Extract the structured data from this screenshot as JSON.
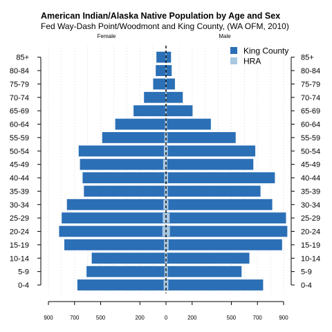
{
  "chart_data": {
    "type": "bar",
    "orientation": "horizontal-population-pyramid",
    "title": "American Indian/Alaska Native Population by Age and Sex",
    "subtitle": "Fed Way-Dash Point/Woodmont and King County, (WA OFM, 2010)",
    "left_label": "Female",
    "right_label": "Male",
    "categories": [
      "0-4",
      "5-9",
      "10-14",
      "15-19",
      "20-24",
      "25-29",
      "30-34",
      "35-39",
      "40-44",
      "45-49",
      "50-54",
      "55-59",
      "60-64",
      "65-69",
      "70-74",
      "75-79",
      "80-84",
      "85+"
    ],
    "x_ticks": [
      {
        "label": "900",
        "value": -900
      },
      {
        "label": "700",
        "value": -700
      },
      {
        "label": "500",
        "value": -500
      },
      {
        "label": "200",
        "value": -200
      },
      {
        "label": "0",
        "value": 0
      },
      {
        "label": "200",
        "value": 200
      },
      {
        "label": "500",
        "value": 500
      },
      {
        "label": "700",
        "value": 700
      },
      {
        "label": "900",
        "value": 900
      }
    ],
    "xlim": [
      -900,
      900
    ],
    "grid": true,
    "legend_position": "top-right",
    "series": [
      {
        "name": "King County",
        "color": "#2b6fb6",
        "female": [
          680,
          610,
          570,
          780,
          820,
          800,
          760,
          630,
          640,
          660,
          670,
          490,
          390,
          250,
          170,
          100,
          80,
          75
        ],
        "male": [
          745,
          580,
          640,
          890,
          930,
          920,
          815,
          725,
          835,
          670,
          685,
          535,
          345,
          205,
          130,
          70,
          45,
          40
        ]
      },
      {
        "name": "HRA",
        "color": "#a9c8e2",
        "female": [
          18,
          12,
          10,
          15,
          28,
          25,
          20,
          12,
          14,
          22,
          16,
          12,
          8,
          6,
          5,
          4,
          3,
          3
        ],
        "male": [
          18,
          14,
          10,
          20,
          30,
          28,
          18,
          14,
          16,
          10,
          14,
          12,
          8,
          6,
          5,
          4,
          3,
          3
        ]
      }
    ]
  }
}
